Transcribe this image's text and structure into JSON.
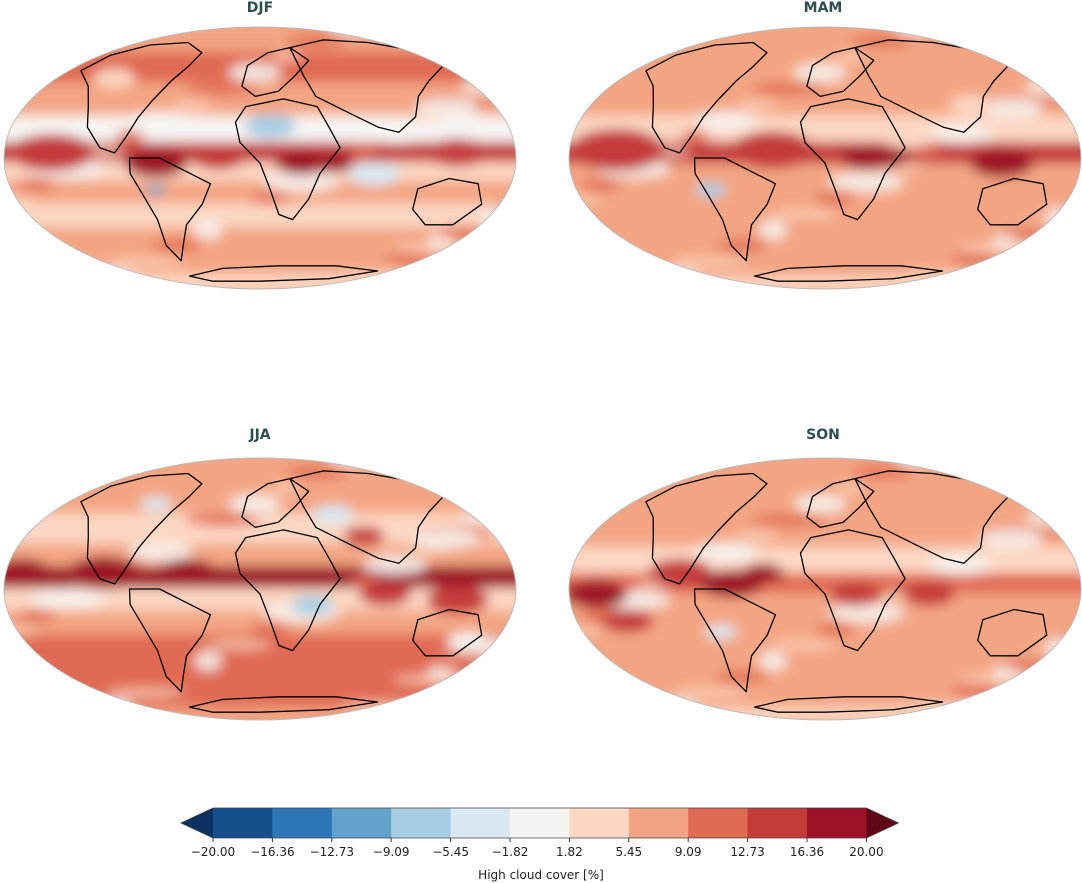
{
  "panels": [
    {
      "title": "DJF"
    },
    {
      "title": "MAM"
    },
    {
      "title": "JJA"
    },
    {
      "title": "SON"
    }
  ],
  "colorbar": {
    "label": "High cloud cover [%]",
    "ticks": [
      "−20.00",
      "−16.36",
      "−12.73",
      "−9.09",
      "−5.45",
      "−1.82",
      "1.82",
      "5.45",
      "9.09",
      "12.73",
      "16.36",
      "20.00"
    ],
    "colors": [
      "#154f8c",
      "#2e77b7",
      "#62a2cc",
      "#a7cde4",
      "#d9e8f2",
      "#f6f4f2",
      "#fcd7c3",
      "#f3a583",
      "#e06b52",
      "#c43b3a",
      "#9d1228"
    ],
    "extend_low_color": "#0c3060",
    "extend_high_color": "#5e0717"
  },
  "map_colors": {
    "ocean_base": "#f2b196",
    "outline": "#bbbbbb",
    "coast": "#000000"
  }
}
